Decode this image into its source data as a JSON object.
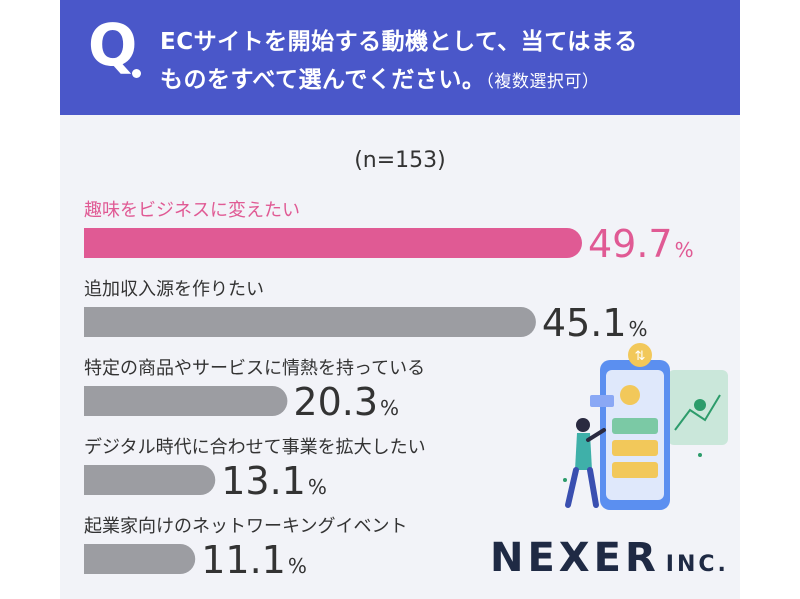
{
  "question": {
    "mark": "Q",
    "line1": "ECサイトを開始する動機として、当てはまる",
    "line2": "ものをすべて選んでください。",
    "note": "（複数選択可）"
  },
  "sample": "(n=153)",
  "logo": {
    "main": "NEXER",
    "sub": "INC."
  },
  "chart_data": {
    "type": "bar",
    "orientation": "horizontal",
    "categories": [
      "趣味をビジネスに変えたい",
      "追加収入源を作りたい",
      "特定の商品やサービスに情熱を持っている",
      "デジタル時代に合わせて事業を拡大したい",
      "起業家向けのネットワーキングイベント"
    ],
    "values": [
      49.7,
      45.1,
      20.3,
      13.1,
      11.1
    ],
    "value_labels": [
      "49.7",
      "45.1",
      "20.3",
      "13.1",
      "11.1"
    ],
    "unit": "%",
    "xlim": [
      0,
      49.7
    ],
    "highlight_index": 0,
    "colors": {
      "highlight": "#e05a94",
      "bar": "#9c9da2",
      "value_text": "#333333",
      "label_text": "#333333"
    }
  }
}
